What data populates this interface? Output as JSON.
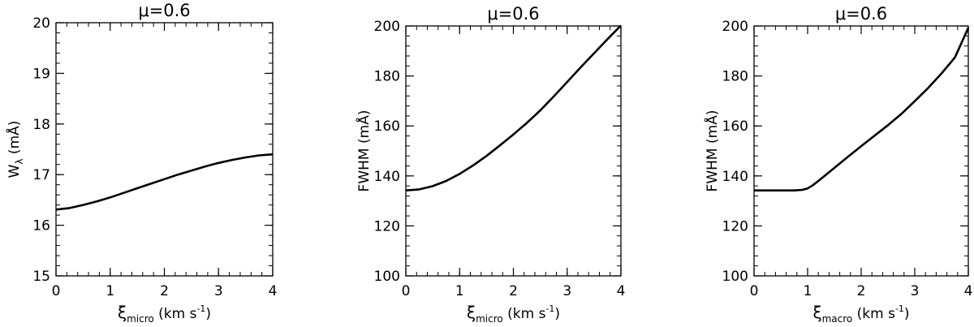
{
  "chart_data": [
    {
      "type": "line",
      "title": "μ=0.6",
      "xlabel": {
        "symbol": "ξ",
        "sub": "micro",
        "unit": " (km s",
        "sup": "-1",
        "close": ")"
      },
      "ylabel": {
        "main": "W",
        "sub": "λ",
        "unit": " (mÅ)"
      },
      "xlim": [
        0,
        4
      ],
      "ylim": [
        15,
        20
      ],
      "xticks": [
        0,
        1,
        2,
        3,
        4
      ],
      "yticks": [
        15,
        16,
        17,
        18,
        19,
        20
      ],
      "xtick_labels": [
        "0",
        "1",
        "2",
        "3",
        "4"
      ],
      "ytick_labels": [
        "15",
        "16",
        "17",
        "18",
        "19",
        "20"
      ],
      "x": [
        0,
        0.25,
        0.5,
        0.75,
        1,
        1.25,
        1.5,
        1.75,
        2,
        2.25,
        2.5,
        2.75,
        3,
        3.25,
        3.5,
        3.75,
        4
      ],
      "y": [
        16.31,
        16.34,
        16.4,
        16.47,
        16.55,
        16.64,
        16.73,
        16.82,
        16.91,
        17.0,
        17.08,
        17.16,
        17.23,
        17.29,
        17.34,
        17.38,
        17.4
      ]
    },
    {
      "type": "line",
      "title": "μ=0.6",
      "xlabel": {
        "symbol": "ξ",
        "sub": "micro",
        "unit": " (km s",
        "sup": "-1",
        "close": ")"
      },
      "ylabel": {
        "main": "FWHM",
        "sub": "",
        "unit": " (mÅ)"
      },
      "xlim": [
        0,
        4
      ],
      "ylim": [
        100,
        200
      ],
      "xticks": [
        0,
        1,
        2,
        3,
        4
      ],
      "yticks": [
        100,
        120,
        140,
        160,
        180,
        200
      ],
      "xtick_labels": [
        "0",
        "1",
        "2",
        "3",
        "4"
      ],
      "ytick_labels": [
        "100",
        "120",
        "140",
        "160",
        "180",
        "200"
      ],
      "x": [
        0,
        0.25,
        0.5,
        0.75,
        1,
        1.25,
        1.5,
        1.75,
        2,
        2.25,
        2.5,
        2.75,
        3,
        3.25,
        3.5,
        3.75,
        4
      ],
      "y": [
        134.2,
        134.6,
        135.9,
        138.0,
        140.8,
        144.2,
        148.0,
        152.2,
        156.6,
        161.2,
        166.2,
        171.8,
        177.6,
        183.4,
        189.1,
        194.7,
        200.2
      ]
    },
    {
      "type": "line",
      "title": "μ=0.6",
      "xlabel": {
        "symbol": "ξ",
        "sub": "macro",
        "unit": " (km s",
        "sup": "-1",
        "close": ")"
      },
      "ylabel": {
        "main": "FWHM",
        "sub": "",
        "unit": " (mÅ)"
      },
      "xlim": [
        0,
        4
      ],
      "ylim": [
        100,
        200
      ],
      "xticks": [
        0,
        1,
        2,
        3,
        4
      ],
      "yticks": [
        100,
        120,
        140,
        160,
        180,
        200
      ],
      "xtick_labels": [
        "0",
        "1",
        "2",
        "3",
        "4"
      ],
      "ytick_labels": [
        "100",
        "120",
        "140",
        "160",
        "180",
        "200"
      ],
      "x": [
        0,
        0.25,
        0.5,
        0.75,
        0.9,
        1.0,
        1.1,
        1.2,
        1.35,
        1.5,
        1.75,
        2,
        2.25,
        2.5,
        2.75,
        3,
        3.25,
        3.5,
        3.75,
        4
      ],
      "y": [
        134.2,
        134.2,
        134.2,
        134.2,
        134.4,
        135.0,
        136.3,
        138.0,
        140.6,
        143.2,
        147.6,
        151.9,
        156.1,
        160.3,
        164.8,
        169.9,
        175.2,
        181.0,
        187.4,
        199.3
      ]
    }
  ]
}
